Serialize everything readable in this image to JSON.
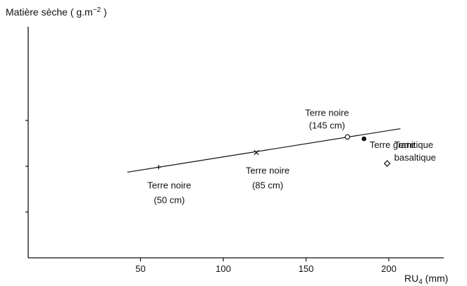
{
  "chart_data": {
    "type": "scatter",
    "ylabel": "Matière sèche",
    "ylabel_unit_open": "( g.m",
    "ylabel_unit_exp": "−2",
    "ylabel_unit_close": " )",
    "xlabel_main": "RU",
    "xlabel_sub": "4",
    "xlabel_unit": " (mm)",
    "xlim": [
      0,
      230
    ],
    "ylim": [
      0,
      4
    ],
    "x_ticks": [
      50,
      100,
      150,
      200
    ],
    "x_tick_labels": [
      "50",
      "100",
      "150",
      "200"
    ],
    "y_ticks": [
      1,
      2,
      3
    ],
    "y_tick_labels": [],
    "grid": false,
    "points": [
      {
        "x": 61,
        "y": 1.98,
        "marker": "plus",
        "label_lines": [
          "Terre noire",
          "(50 cm)"
        ]
      },
      {
        "x": 120,
        "y": 2.3,
        "marker": "cross",
        "label_lines": [
          "Terre noire",
          "(85 cm)"
        ]
      },
      {
        "x": 175,
        "y": 2.64,
        "marker": "circle-open",
        "label_lines": [
          "Terre noire",
          "(145 cm)"
        ]
      },
      {
        "x": 185,
        "y": 2.6,
        "marker": "circle-filled",
        "label_lines": [
          "Terre granitique"
        ]
      },
      {
        "x": 199,
        "y": 2.06,
        "marker": "diamond-open",
        "label_lines": [
          "Terre",
          "basaltique"
        ]
      }
    ],
    "regression_line": {
      "x": [
        42,
        207
      ],
      "y": [
        1.87,
        2.82
      ]
    }
  }
}
